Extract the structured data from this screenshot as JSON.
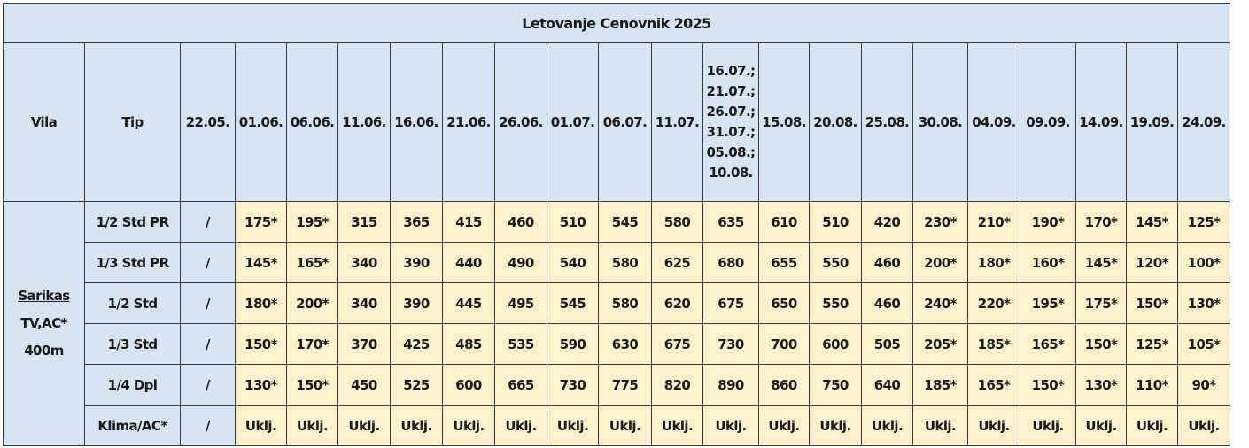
{
  "title": "Letovanje Cenovnik 2025",
  "headers": {
    "vila": "Vila",
    "tip": "Tip",
    "dates": [
      "22.05.",
      "01.06.",
      "06.06.",
      "11.06.",
      "16.06.",
      "21.06.",
      "26.06.",
      "01.07.",
      "06.07.",
      "11.07."
    ],
    "multi_date": [
      "16.07.;",
      "21.07.;",
      "26.07.;",
      "31.07.;",
      "05.08.;",
      "10.08."
    ],
    "dates_after": [
      "15.08.",
      "20.08.",
      "25.08.",
      "30.08.",
      "04.09.",
      "09.09.",
      "14.09.",
      "19.09.",
      "24.09."
    ]
  },
  "vila": {
    "name": "Sarikas",
    "amenities": "TV,AC*",
    "distance": "400m"
  },
  "rows": [
    {
      "tip": "1/2 Std PR",
      "cells": [
        "/",
        "175*",
        "195*",
        "315",
        "365",
        "415",
        "460",
        "510",
        "545",
        "580",
        "635",
        "610",
        "510",
        "420",
        "230*",
        "210*",
        "190*",
        "170*",
        "145*",
        "125*"
      ]
    },
    {
      "tip": "1/3 Std PR",
      "cells": [
        "/",
        "145*",
        "165*",
        "340",
        "390",
        "440",
        "490",
        "540",
        "580",
        "625",
        "680",
        "655",
        "550",
        "460",
        "200*",
        "180*",
        "160*",
        "145*",
        "120*",
        "100*"
      ]
    },
    {
      "tip": "1/2 Std",
      "cells": [
        "/",
        "180*",
        "200*",
        "340",
        "390",
        "445",
        "495",
        "545",
        "580",
        "620",
        "675",
        "650",
        "550",
        "460",
        "240*",
        "220*",
        "195*",
        "175*",
        "150*",
        "130*"
      ]
    },
    {
      "tip": "1/3 Std",
      "cells": [
        "/",
        "150*",
        "170*",
        "370",
        "425",
        "485",
        "535",
        "590",
        "630",
        "675",
        "730",
        "700",
        "600",
        "505",
        "205*",
        "185*",
        "165*",
        "150*",
        "125*",
        "105*"
      ]
    },
    {
      "tip": "1/4 Dpl",
      "cells": [
        "/",
        "130*",
        "150*",
        "450",
        "525",
        "600",
        "665",
        "730",
        "775",
        "820",
        "890",
        "860",
        "750",
        "640",
        "185*",
        "165*",
        "150*",
        "130*",
        "110*",
        "90*"
      ]
    },
    {
      "tip": "Klima/AC*",
      "cells": [
        "/",
        "Uklj.",
        "Uklj.",
        "Uklj.",
        "Uklj.",
        "Uklj.",
        "Uklj.",
        "Uklj.",
        "Uklj.",
        "Uklj.",
        "Uklj.",
        "Uklj.",
        "Uklj.",
        "Uklj.",
        "Uklj.",
        "Uklj.",
        "Uklj.",
        "Uklj.",
        "Uklj.",
        "Uklj."
      ]
    }
  ],
  "colors": {
    "header_bg": "#d6e4f4",
    "price_bg": "#fff1cd",
    "border": "#3a3a3a"
  }
}
